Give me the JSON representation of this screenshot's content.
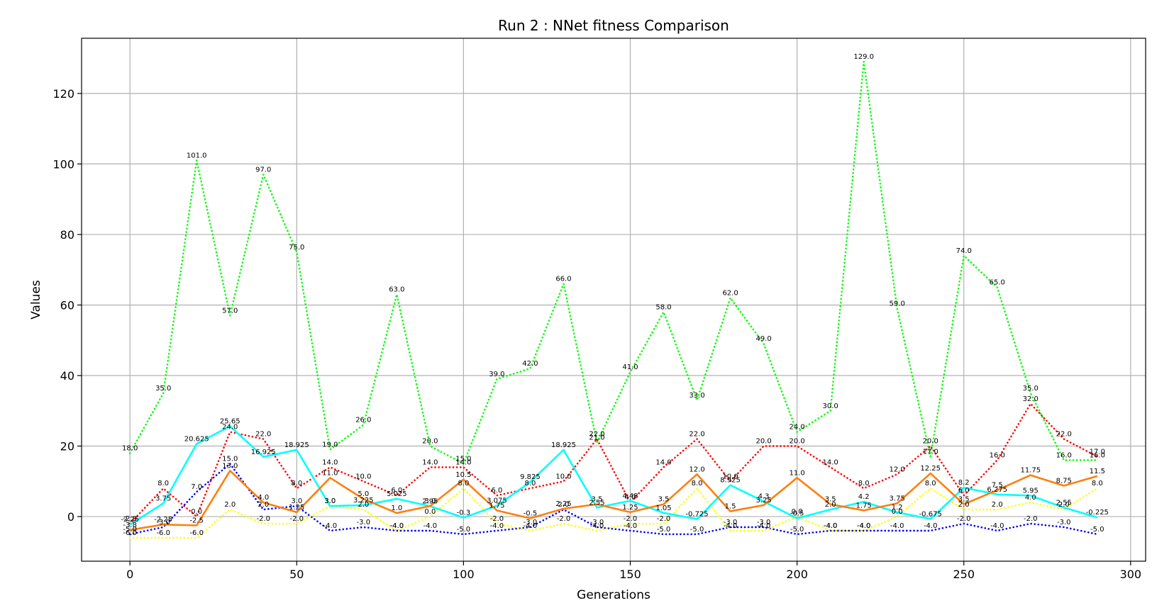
{
  "chart_data": {
    "type": "line",
    "title": "Run 2 : NNet fitness Comparison",
    "xlabel": "Generations",
    "ylabel": "Values",
    "xlim": [
      -14.5,
      304.5
    ],
    "ylim": [
      -12.65,
      135.65
    ],
    "xticks": [
      0,
      50,
      100,
      150,
      200,
      250,
      300
    ],
    "yticks": [
      0,
      20,
      40,
      60,
      80,
      100,
      120
    ],
    "grid": true,
    "x": [
      0,
      10,
      20,
      30,
      40,
      50,
      60,
      70,
      80,
      90,
      100,
      110,
      120,
      130,
      140,
      150,
      160,
      170,
      180,
      190,
      200,
      210,
      220,
      230,
      240,
      250,
      260,
      270,
      280,
      290
    ],
    "series": [
      {
        "color": "#00ff00",
        "style": "dotted",
        "values": [
          18.0,
          35.0,
          101.0,
          57.0,
          97.0,
          75.0,
          19.0,
          26.0,
          63.0,
          20.0,
          15.0,
          39.0,
          42.0,
          66.0,
          21.0,
          41.0,
          58.0,
          33.0,
          62.0,
          49.0,
          24.0,
          30.0,
          129.0,
          59.0,
          17.0,
          74.0,
          65.0,
          35.0,
          16.0,
          16.0
        ],
        "labels": [
          "18.0",
          "35.0",
          "101.0",
          "57.0",
          "97.0",
          "75.0",
          "19.0",
          "26.0",
          "63.0",
          "20.0",
          "15.0",
          "39.0",
          "42.0",
          "66.0",
          "21.0",
          "41.0",
          "58.0",
          "33.0",
          "62.0",
          "49.0",
          "24.0",
          "30.0",
          "129.0",
          "59.0",
          "17.0",
          "74.0",
          "65.0",
          "35.0",
          "16.0",
          "16.0"
        ]
      },
      {
        "color": "#ff0000",
        "style": "dotted",
        "values": [
          -2.0,
          8.0,
          0.0,
          24.0,
          22.0,
          8.0,
          14.0,
          10.0,
          6.0,
          14.0,
          14.0,
          6.0,
          8.0,
          10.0,
          22.0,
          4.0,
          14.0,
          22.0,
          10.0,
          20.0,
          20.0,
          14.0,
          8.0,
          12.0,
          20.0,
          6.0,
          16.0,
          32.0,
          22.0,
          17.0
        ],
        "labels": [
          "-2.0",
          "8.0",
          "0.0",
          "24.0",
          "22.0",
          "8.0",
          "14.0",
          "10.0",
          "6.0",
          "14.0",
          "14.0",
          "6.0",
          "8.0",
          "10.0",
          "22.0",
          "4.0",
          "14.0",
          "22.0",
          "10.0",
          "20.0",
          "20.0",
          "14.0",
          "8.0",
          "12.0",
          "20.0",
          "6.0",
          "16.0",
          "32.0",
          "22.0",
          "17.0"
        ]
      },
      {
        "color": "#0000ff",
        "style": "dotted",
        "values": [
          -5.0,
          -3.0,
          7.0,
          15.0,
          2.0,
          3.0,
          -4.0,
          -3.0,
          -4.0,
          -4.0,
          -5.0,
          -4.0,
          -3.0,
          2.0,
          -3.0,
          -4.0,
          -5.0,
          -5.0,
          -3.0,
          -3.0,
          -5.0,
          -4.0,
          -4.0,
          -4.0,
          -4.0,
          -2.0,
          -4.0,
          -2.0,
          -3.0,
          -5.0
        ],
        "labels": [
          "-5.0",
          "-3.0",
          "7.0",
          "15.0",
          "2.0",
          "3.0",
          "-4.0",
          "-3.0",
          "-4.0",
          "-4.0",
          "-5.0",
          "-4.0",
          "-3.0",
          "2.0",
          "-3.0",
          "-4.0",
          "-5.0",
          "-5.0",
          "-3.0",
          "-3.0",
          "-5.0",
          "-4.0",
          "-4.0",
          "-4.0",
          "-4.0",
          "-2.0",
          "-4.0",
          "-2.0",
          "-3.0",
          "-5.0"
        ]
      },
      {
        "color": "#ffff00",
        "style": "dotted",
        "values": [
          -6.0,
          -6.0,
          -6.0,
          2.0,
          -2.0,
          -2.0,
          3.0,
          2.0,
          -4.0,
          0.0,
          8.0,
          -2.0,
          -4.0,
          -2.0,
          -4.0,
          -2.0,
          -2.0,
          8.0,
          -4.0,
          -4.0,
          0.0,
          -4.0,
          -4.0,
          0.0,
          8.0,
          2.0,
          2.0,
          4.0,
          2.0,
          8.0
        ],
        "labels": [
          "-6.0",
          "-6.0",
          "-6.0",
          "2.0",
          "-2.0",
          "-2.0",
          "3.0",
          "2.0",
          "-4.0",
          "0.0",
          "8.0",
          "-2.0",
          "-4.0",
          "-2.0",
          "-4.0",
          "-2.0",
          "-2.0",
          "8.0",
          "-4.0",
          "-4.0",
          "0.0",
          "-4.0",
          "-4.0",
          "0.0",
          "8.0",
          "2.0",
          "2.0",
          "4.0",
          "2.0",
          "8.0"
        ]
      },
      {
        "color": "#00ffff",
        "style": "solid",
        "values": [
          -2.25,
          3.75,
          20.625,
          25.65,
          16.925,
          18.925,
          3.0,
          3.225,
          5.025,
          2.95,
          -0.3,
          3.075,
          9.825,
          18.925,
          2.55,
          4.48,
          1.05,
          -0.725,
          8.925,
          4.3,
          -0.5,
          2.0,
          4.2,
          1.2,
          -0.675,
          8.2,
          6.275,
          5.95,
          2.55,
          -0.225
        ],
        "labels": [
          "-2.25",
          "3.75",
          "20.625",
          "25.65",
          "16.925",
          "18.925",
          "3.0",
          "3.225",
          "5.025",
          "2.95",
          "-0.3",
          "3.075",
          "9.825",
          "18.925",
          "2.55",
          "4.48",
          "1.05",
          "-0.725",
          "8.925",
          "4.3",
          "-0.5",
          "2.0",
          "4.2",
          "1.2",
          "-0.675",
          "8.2",
          "6.275",
          "5.95",
          "2.55",
          "-0.225"
        ]
      },
      {
        "color": "#ff7f0e",
        "style": "solid",
        "values": [
          -3.8,
          -2.25,
          -2.5,
          13.0,
          4.0,
          1.25,
          11.0,
          5.0,
          1.0,
          3.0,
          10.5,
          1.75,
          -0.5,
          2.25,
          3.5,
          1.25,
          3.5,
          12.0,
          1.5,
          3.25,
          11.0,
          3.5,
          1.75,
          3.75,
          12.25,
          3.5,
          7.5,
          11.75,
          8.75,
          11.5
        ],
        "labels": [
          "-3.8",
          "-2.25",
          "-2.5",
          "13.0",
          "4.0",
          "1.25",
          "11.0",
          "5.0",
          "1.0",
          "3.0",
          "10.5",
          "1.75",
          "-0.5",
          "2.25",
          "3.5",
          "1.25",
          "3.5",
          "12.0",
          "1.5",
          "3.25",
          "11.0",
          "3.5",
          "1.75",
          "3.75",
          "12.25",
          "3.5",
          "7.5",
          "11.75",
          "8.75",
          "11.5"
        ]
      }
    ]
  }
}
